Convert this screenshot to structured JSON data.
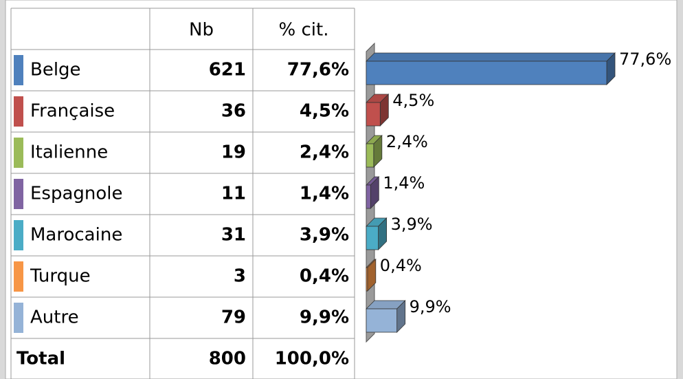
{
  "chart_data": {
    "type": "bar",
    "columns": [
      "Nb",
      "% cit."
    ],
    "categories": [
      "Belge",
      "Française",
      "Italienne",
      "Espagnole",
      "Marocaine",
      "Turque",
      "Autre"
    ],
    "counts": [
      621,
      36,
      19,
      11,
      31,
      3,
      79
    ],
    "values": [
      77.6,
      4.5,
      2.4,
      1.4,
      3.9,
      0.4,
      9.9
    ],
    "value_labels": [
      "77,6%",
      "4,5%",
      "2,4%",
      "1,4%",
      "3,9%",
      "0,4%",
      "9,9%"
    ],
    "colors": [
      "#4f81bd",
      "#c0504d",
      "#9bbb59",
      "#8064a2",
      "#4bacc6",
      "#f79646",
      "#95b3d7"
    ],
    "total_label": "Total",
    "total_count": 800,
    "total_value": 100,
    "total_value_label": "100,0%"
  }
}
